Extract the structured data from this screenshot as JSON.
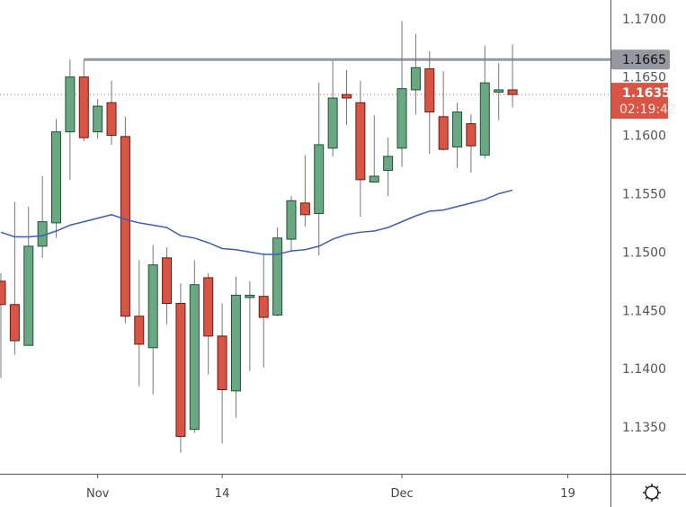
{
  "chart_data": {
    "type": "candlestick",
    "title": "",
    "colors": {
      "up": "#6aa783",
      "up_border": "#1f5236",
      "down": "#d85444",
      "down_border": "#6b1a12",
      "wick": "#777777",
      "ma": "#3b5fb8",
      "level_line": "#9598a1",
      "last_price": "#d85444"
    },
    "ylim": [
      1.131,
      1.1716
    ],
    "y_ticks": [
      "1.1700",
      "1.1650",
      "1.1600",
      "1.1550",
      "1.1500",
      "1.1450",
      "1.1400",
      "1.1350"
    ],
    "x_ticks": [
      {
        "label": "Nov",
        "index": 7
      },
      {
        "label": "14",
        "index": 16
      },
      {
        "label": "Dec",
        "index": 29
      },
      {
        "label": "19",
        "index": 41
      }
    ],
    "candles": [
      {
        "o": 1.1475,
        "h": 1.1482,
        "l": 1.1392,
        "c": 1.1455
      },
      {
        "o": 1.1455,
        "h": 1.1543,
        "l": 1.1412,
        "c": 1.1424
      },
      {
        "o": 1.142,
        "h": 1.1539,
        "l": 1.142,
        "c": 1.1505
      },
      {
        "o": 1.1505,
        "h": 1.1565,
        "l": 1.1495,
        "c": 1.1526
      },
      {
        "o": 1.1525,
        "h": 1.1614,
        "l": 1.1512,
        "c": 1.1603
      },
      {
        "o": 1.1603,
        "h": 1.1665,
        "l": 1.1562,
        "c": 1.165
      },
      {
        "o": 1.165,
        "h": 1.1665,
        "l": 1.1595,
        "c": 1.1598
      },
      {
        "o": 1.1603,
        "h": 1.1631,
        "l": 1.1597,
        "c": 1.1625
      },
      {
        "o": 1.1628,
        "h": 1.1647,
        "l": 1.1592,
        "c": 1.16
      },
      {
        "o": 1.1599,
        "h": 1.1616,
        "l": 1.1439,
        "c": 1.1445
      },
      {
        "o": 1.1445,
        "h": 1.1493,
        "l": 1.1385,
        "c": 1.1421
      },
      {
        "o": 1.1418,
        "h": 1.1506,
        "l": 1.1378,
        "c": 1.1489
      },
      {
        "o": 1.1495,
        "h": 1.1504,
        "l": 1.1438,
        "c": 1.1456
      },
      {
        "o": 1.1456,
        "h": 1.1473,
        "l": 1.1328,
        "c": 1.1342
      },
      {
        "o": 1.1348,
        "h": 1.1493,
        "l": 1.1345,
        "c": 1.1472
      },
      {
        "o": 1.1478,
        "h": 1.1482,
        "l": 1.1395,
        "c": 1.1428
      },
      {
        "o": 1.1428,
        "h": 1.1456,
        "l": 1.1336,
        "c": 1.1382
      },
      {
        "o": 1.1381,
        "h": 1.1479,
        "l": 1.1358,
        "c": 1.1463
      },
      {
        "o": 1.1461,
        "h": 1.1475,
        "l": 1.1398,
        "c": 1.1463
      },
      {
        "o": 1.1462,
        "h": 1.1499,
        "l": 1.1401,
        "c": 1.1444
      },
      {
        "o": 1.1446,
        "h": 1.1521,
        "l": 1.1445,
        "c": 1.1512
      },
      {
        "o": 1.1511,
        "h": 1.1548,
        "l": 1.15,
        "c": 1.1544
      },
      {
        "o": 1.1542,
        "h": 1.1583,
        "l": 1.1522,
        "c": 1.1532
      },
      {
        "o": 1.1533,
        "h": 1.1645,
        "l": 1.1497,
        "c": 1.1592
      },
      {
        "o": 1.1589,
        "h": 1.1664,
        "l": 1.1582,
        "c": 1.1632
      },
      {
        "o": 1.1635,
        "h": 1.1656,
        "l": 1.1609,
        "c": 1.1632
      },
      {
        "o": 1.1628,
        "h": 1.1647,
        "l": 1.153,
        "c": 1.1562
      },
      {
        "o": 1.156,
        "h": 1.1617,
        "l": 1.156,
        "c": 1.1565
      },
      {
        "o": 1.157,
        "h": 1.1598,
        "l": 1.1548,
        "c": 1.1582
      },
      {
        "o": 1.1589,
        "h": 1.1698,
        "l": 1.1573,
        "c": 1.164
      },
      {
        "o": 1.1639,
        "h": 1.1687,
        "l": 1.1618,
        "c": 1.1658
      },
      {
        "o": 1.1657,
        "h": 1.1672,
        "l": 1.1584,
        "c": 1.162
      },
      {
        "o": 1.1616,
        "h": 1.1655,
        "l": 1.1587,
        "c": 1.1588
      },
      {
        "o": 1.159,
        "h": 1.1628,
        "l": 1.1572,
        "c": 1.162
      },
      {
        "o": 1.161,
        "h": 1.1618,
        "l": 1.1568,
        "c": 1.1591
      },
      {
        "o": 1.1583,
        "h": 1.1677,
        "l": 1.158,
        "c": 1.1645
      },
      {
        "o": 1.1637,
        "h": 1.1662,
        "l": 1.1613,
        "c": 1.1639
      },
      {
        "o": 1.1639,
        "h": 1.1678,
        "l": 1.1624,
        "c": 1.1635
      }
    ],
    "moving_average": [
      1.1517,
      1.1513,
      1.1513,
      1.1514,
      1.1518,
      1.1523,
      1.1526,
      1.1529,
      1.1532,
      1.1528,
      1.1525,
      1.1523,
      1.1521,
      1.1514,
      1.1512,
      1.1508,
      1.1503,
      1.1502,
      1.15,
      1.1498,
      1.1498,
      1.1501,
      1.1502,
      1.1505,
      1.1511,
      1.1515,
      1.1517,
      1.1518,
      1.1521,
      1.1526,
      1.1531,
      1.1535,
      1.1536,
      1.1539,
      1.1542,
      1.1545,
      1.155,
      1.1553
    ],
    "horizontal_level": {
      "value": 1.1665,
      "label": "1.1665",
      "start_index": 6
    },
    "last_price": {
      "value": 1.1635,
      "label": "1.1635",
      "countdown": "02:19:42"
    },
    "grid": false
  },
  "settings_icon": "gear-icon"
}
